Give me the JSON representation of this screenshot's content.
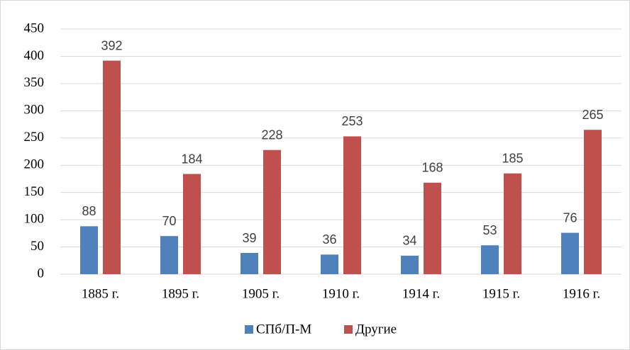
{
  "chart_data": {
    "type": "bar",
    "categories": [
      "1885 г.",
      "1895 г.",
      "1905 г.",
      "1910 г.",
      "1914 г.",
      "1915 г.",
      "1916 г."
    ],
    "series": [
      {
        "name": "СПб/П-М",
        "color": "#4f81bd",
        "values": [
          88,
          70,
          39,
          36,
          34,
          53,
          76
        ]
      },
      {
        "name": "Другие",
        "color": "#c0504d",
        "values": [
          392,
          184,
          228,
          253,
          168,
          185,
          265
        ]
      }
    ],
    "ylim": [
      0,
      450
    ],
    "yticks": [
      0,
      50,
      100,
      150,
      200,
      250,
      300,
      350,
      400,
      450
    ],
    "grid": true,
    "legend": "bottom"
  }
}
